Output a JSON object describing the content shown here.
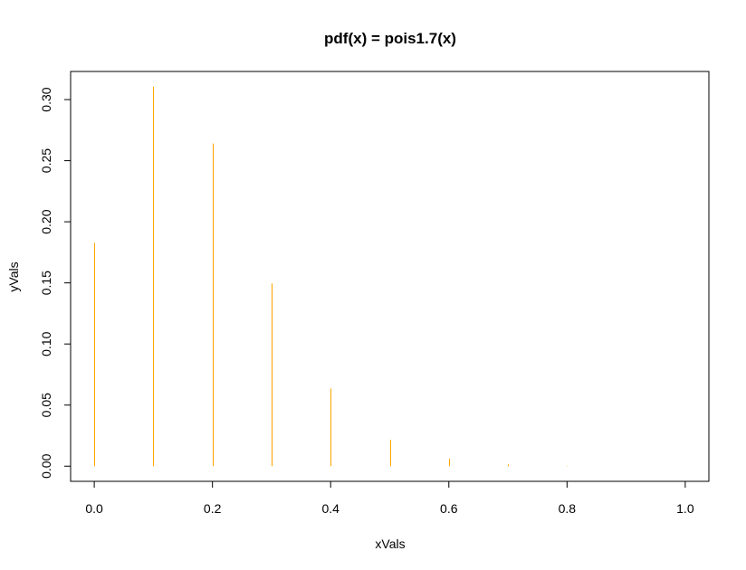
{
  "chart_data": {
    "type": "bar",
    "title": "pdf(x) = pois1.7(x)",
    "xlabel": "xVals",
    "ylabel": "yVals",
    "x": [
      0.0,
      0.1,
      0.2,
      0.3,
      0.4,
      0.5,
      0.6,
      0.7,
      0.8,
      0.9,
      1.0
    ],
    "values": [
      0.1827,
      0.3106,
      0.264,
      0.1496,
      0.0636,
      0.0216,
      0.0061,
      0.0015,
      0.0003,
      6e-05,
      1e-05
    ],
    "xlim": [
      -0.04,
      1.04
    ],
    "ylim": [
      -0.0124,
      0.323
    ],
    "xticks": [
      "0.0",
      "0.2",
      "0.4",
      "0.6",
      "0.8",
      "1.0"
    ],
    "xtick_values": [
      0.0,
      0.2,
      0.4,
      0.6,
      0.8,
      1.0
    ],
    "yticks": [
      "0.00",
      "0.05",
      "0.10",
      "0.15",
      "0.20",
      "0.25",
      "0.30"
    ],
    "ytick_values": [
      0.0,
      0.05,
      0.1,
      0.15,
      0.2,
      0.25,
      0.3
    ],
    "grid": false,
    "bar_color": "#FFA500"
  }
}
